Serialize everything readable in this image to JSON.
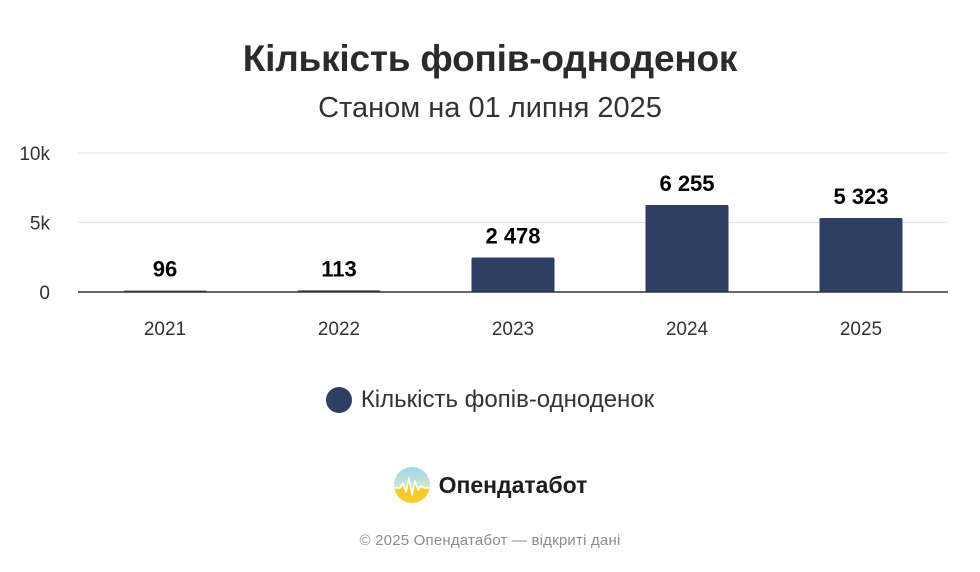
{
  "chart_data": {
    "type": "bar",
    "title": "Кількість фопів-одноденок",
    "subtitle": "Станом на 01 липня 2025",
    "categories": [
      "2021",
      "2022",
      "2023",
      "2024",
      "2025"
    ],
    "series": [
      {
        "name": "Кількість фопів-одноденок",
        "values": [
          96,
          113,
          2478,
          6255,
          5323
        ],
        "labels": [
          "96",
          "113",
          "2 478",
          "6 255",
          "5 323"
        ]
      }
    ],
    "ylim": [
      0,
      10000
    ],
    "yticks": [
      "0",
      "5k",
      "10k"
    ],
    "ytick_values": [
      0,
      5000,
      10000
    ],
    "grid": true,
    "legend_placement": "bottom",
    "bar_color": "#2e3f63"
  },
  "brand": {
    "name": "Опендатабот",
    "icon": "opendatabot-logo-icon"
  },
  "footer": "© 2025 Опендатабот — відкриті дані"
}
